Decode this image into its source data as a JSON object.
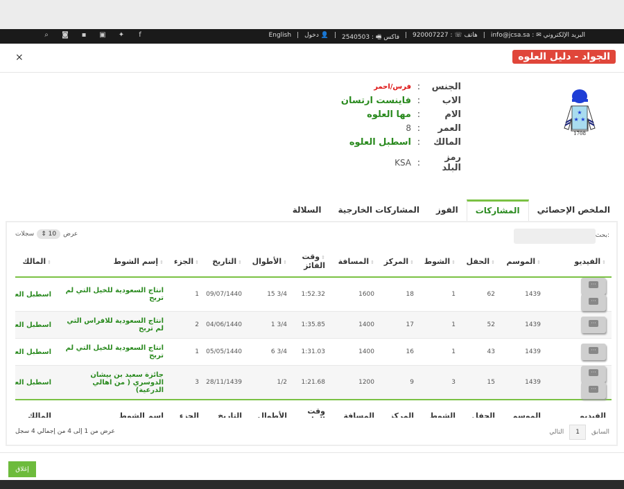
{
  "topbar": {
    "email": "البريد الإلكتروني ✉ : info@jcsa.sa",
    "phone": "هاتف ☏ : 920007227",
    "fax": "فاكس 🖷 : 2540503",
    "login": "دخول",
    "language": "English",
    "social_icons": [
      "facebook-icon",
      "twitter-icon",
      "youtube-icon",
      "flickr-icon",
      "instagram-icon",
      "search-icon"
    ]
  },
  "modal": {
    "title": "الجواد - دليل العلوه",
    "close_symbol": "×",
    "silk_number": "1708",
    "info": [
      {
        "label": "الجنس",
        "value": "فرس/احمر",
        "style": "red"
      },
      {
        "label": "الاب",
        "value": "فاينست ارتسان",
        "style": "green"
      },
      {
        "label": "الام",
        "value": "مها العلوه",
        "style": "green"
      },
      {
        "label": "العمر",
        "value": "8",
        "style": "plain"
      },
      {
        "label": "المالك",
        "value": "اسطبل العلوه",
        "style": "green"
      },
      {
        "label": "رمز البلد",
        "value": "KSA",
        "style": "plain"
      }
    ],
    "tabs": [
      "الملخص الإحصائي",
      "المشاركات",
      "الفوز",
      "المشاركات الخارجية",
      "السلالة"
    ],
    "active_tab": 1,
    "search_label": "بحث:",
    "length_prefix": "عرض",
    "length_value": "10",
    "length_suffix": "سجلات",
    "columns": [
      "الفيديو",
      "الموسم",
      "الحفل",
      "الشوط",
      "المركز",
      "المسافة",
      "وقت الفائز",
      "الأطوال",
      "التاريخ",
      "الجزء",
      "إسم الشوط",
      "المالك"
    ],
    "rows": [
      {
        "videos": 2,
        "season": "1439",
        "meeting": "62",
        "race": "1",
        "position": "18",
        "distance": "1600",
        "time": "1:52.32",
        "lengths": "3/4 15",
        "date": "09/07/1440",
        "part": "1",
        "race_name": "انتاج السعودية للخيل التي لم تربح",
        "owner": "اسطبل العلوه"
      },
      {
        "videos": 1,
        "season": "1439",
        "meeting": "52",
        "race": "1",
        "position": "17",
        "distance": "1400",
        "time": "1:35.85",
        "lengths": "3/4 1",
        "date": "04/06/1440",
        "part": "2",
        "race_name": "انتاج السعودية للافراس التي لم تربح",
        "owner": "اسطبل العلوه"
      },
      {
        "videos": 1,
        "season": "1439",
        "meeting": "43",
        "race": "1",
        "position": "16",
        "distance": "1400",
        "time": "1:31.03",
        "lengths": "3/4 6",
        "date": "05/05/1440",
        "part": "1",
        "race_name": "انتاج السعودية للخيل التي لم تربح",
        "owner": "اسطبل العلوه"
      },
      {
        "videos": 2,
        "season": "1439",
        "meeting": "15",
        "race": "3",
        "position": "9",
        "distance": "1200",
        "time": "1:21.68",
        "lengths": "1/2",
        "date": "28/11/1439",
        "part": "3",
        "race_name": "جائزة سعيد بن بيشان الدوسري ( من اهالي الدرعية)",
        "owner": "اسطبل العلوه"
      }
    ],
    "info_text": "عرض من 1 إلى 4 من إجمالي 4 سجل",
    "pager": {
      "prev": "السابق",
      "current": "1",
      "next": "التالي"
    },
    "close_button": "إغلاق"
  },
  "colors": {
    "accent_green": "#2a8a1f",
    "title_red": "#e0463a",
    "button_green": "#6dbb3c"
  }
}
